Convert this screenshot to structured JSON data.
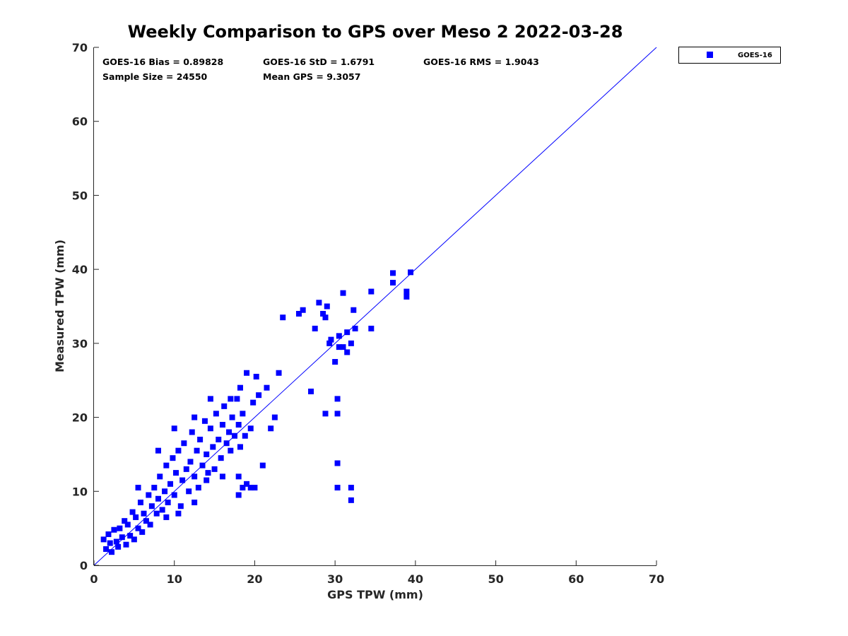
{
  "chart_data": {
    "type": "scatter",
    "title": "Weekly Comparison to GPS over Meso 2 2022-03-28",
    "xlabel": "GPS TPW (mm)",
    "ylabel": "Measured TPW (mm)",
    "xlim": [
      0,
      70
    ],
    "ylim": [
      0,
      70
    ],
    "xticks": [
      0,
      10,
      20,
      30,
      40,
      50,
      60,
      70
    ],
    "yticks": [
      0,
      10,
      20,
      30,
      40,
      50,
      60,
      70
    ],
    "grid": false,
    "legend_position": "outside-top-right",
    "color": "#0000ff",
    "stats": [
      "GOES-16 Bias = 0.89828",
      "GOES-16 StD = 1.6791",
      "GOES-16 RMS = 1.9043",
      "Sample Size = 24550",
      "Mean GPS = 9.3057"
    ],
    "reference_line": {
      "name": "1:1 line",
      "x": [
        0,
        70
      ],
      "y": [
        0,
        70
      ]
    },
    "series": [
      {
        "name": "GOES-16",
        "marker": "square",
        "points": [
          [
            1.2,
            3.5
          ],
          [
            1.5,
            2.2
          ],
          [
            1.8,
            4.2
          ],
          [
            2.0,
            3.0
          ],
          [
            2.2,
            1.8
          ],
          [
            2.5,
            4.8
          ],
          [
            2.8,
            3.2
          ],
          [
            3.0,
            2.5
          ],
          [
            3.2,
            5.0
          ],
          [
            3.5,
            3.8
          ],
          [
            3.8,
            6.0
          ],
          [
            4.0,
            2.8
          ],
          [
            4.2,
            5.5
          ],
          [
            4.5,
            4.0
          ],
          [
            4.8,
            7.2
          ],
          [
            5.0,
            3.5
          ],
          [
            5.2,
            6.5
          ],
          [
            5.5,
            5.0
          ],
          [
            5.8,
            8.5
          ],
          [
            6.0,
            4.5
          ],
          [
            6.2,
            7.0
          ],
          [
            6.5,
            6.0
          ],
          [
            6.8,
            9.5
          ],
          [
            7.0,
            5.5
          ],
          [
            7.2,
            8.0
          ],
          [
            7.5,
            10.5
          ],
          [
            7.8,
            7.0
          ],
          [
            8.0,
            9.0
          ],
          [
            8.2,
            12.0
          ],
          [
            8.5,
            7.5
          ],
          [
            8.8,
            10.0
          ],
          [
            9.0,
            13.5
          ],
          [
            9.2,
            8.5
          ],
          [
            9.5,
            11.0
          ],
          [
            9.8,
            14.5
          ],
          [
            10.0,
            9.5
          ],
          [
            10.2,
            12.5
          ],
          [
            10.5,
            15.5
          ],
          [
            10.8,
            8.0
          ],
          [
            11.0,
            11.5
          ],
          [
            11.2,
            16.5
          ],
          [
            11.5,
            13.0
          ],
          [
            11.8,
            10.0
          ],
          [
            12.0,
            14.0
          ],
          [
            12.2,
            18.0
          ],
          [
            12.5,
            12.0
          ],
          [
            12.8,
            15.5
          ],
          [
            13.0,
            10.5
          ],
          [
            13.2,
            17.0
          ],
          [
            13.5,
            13.5
          ],
          [
            13.8,
            19.5
          ],
          [
            14.0,
            15.0
          ],
          [
            14.2,
            12.5
          ],
          [
            14.5,
            18.5
          ],
          [
            14.8,
            16.0
          ],
          [
            15.0,
            13.0
          ],
          [
            15.2,
            20.5
          ],
          [
            15.5,
            17.0
          ],
          [
            15.8,
            14.5
          ],
          [
            16.0,
            19.0
          ],
          [
            16.2,
            21.5
          ],
          [
            16.5,
            16.5
          ],
          [
            16.8,
            18.0
          ],
          [
            17.0,
            15.5
          ],
          [
            17.2,
            20.0
          ],
          [
            17.5,
            17.5
          ],
          [
            17.8,
            22.5
          ],
          [
            18.0,
            19.0
          ],
          [
            18.2,
            16.0
          ],
          [
            18.5,
            20.5
          ],
          [
            18.8,
            17.5
          ],
          [
            19.0,
            26.0
          ],
          [
            19.5,
            18.5
          ],
          [
            19.8,
            22.0
          ],
          [
            20.2,
            25.5
          ],
          [
            20.5,
            23.0
          ],
          [
            21.0,
            13.5
          ],
          [
            21.5,
            24.0
          ],
          [
            22.0,
            18.5
          ],
          [
            22.5,
            20.0
          ],
          [
            23.0,
            26.0
          ],
          [
            23.5,
            33.5
          ],
          [
            9.0,
            6.5
          ],
          [
            10.5,
            7.0
          ],
          [
            12.5,
            8.5
          ],
          [
            14.0,
            11.5
          ],
          [
            16.0,
            12.0
          ],
          [
            18.0,
            9.5
          ],
          [
            18.0,
            12.0
          ],
          [
            19.5,
            10.5
          ],
          [
            20.0,
            10.5
          ],
          [
            5.5,
            10.5
          ],
          [
            8.0,
            15.5
          ],
          [
            10.0,
            18.5
          ],
          [
            12.5,
            20.0
          ],
          [
            14.5,
            22.5
          ],
          [
            17.0,
            22.5
          ],
          [
            18.2,
            24.0
          ],
          [
            18.5,
            10.5
          ],
          [
            19.0,
            11.0
          ],
          [
            26.0,
            34.5
          ],
          [
            27.0,
            23.5
          ],
          [
            27.5,
            32.0
          ],
          [
            28.0,
            35.5
          ],
          [
            28.5,
            34.0
          ],
          [
            28.8,
            20.5
          ],
          [
            29.0,
            35.0
          ],
          [
            29.3,
            30.0
          ],
          [
            29.5,
            30.5
          ],
          [
            30.0,
            27.5
          ],
          [
            30.3,
            22.5
          ],
          [
            30.5,
            31.0
          ],
          [
            30.5,
            29.5
          ],
          [
            30.3,
            20.5
          ],
          [
            30.3,
            13.8
          ],
          [
            30.3,
            10.5
          ],
          [
            31.0,
            29.5
          ],
          [
            31.0,
            36.8
          ],
          [
            31.5,
            31.5
          ],
          [
            32.0,
            30.0
          ],
          [
            32.0,
            10.5
          ],
          [
            32.0,
            8.8
          ],
          [
            32.3,
            34.5
          ],
          [
            32.5,
            32.0
          ],
          [
            34.5,
            37.0
          ],
          [
            34.5,
            32.0
          ],
          [
            37.2,
            39.5
          ],
          [
            37.2,
            38.2
          ],
          [
            38.9,
            37.0
          ],
          [
            38.9,
            36.3
          ],
          [
            39.4,
            39.6
          ],
          [
            25.5,
            34.0
          ],
          [
            28.8,
            33.5
          ],
          [
            31.5,
            28.8
          ]
        ]
      }
    ]
  }
}
